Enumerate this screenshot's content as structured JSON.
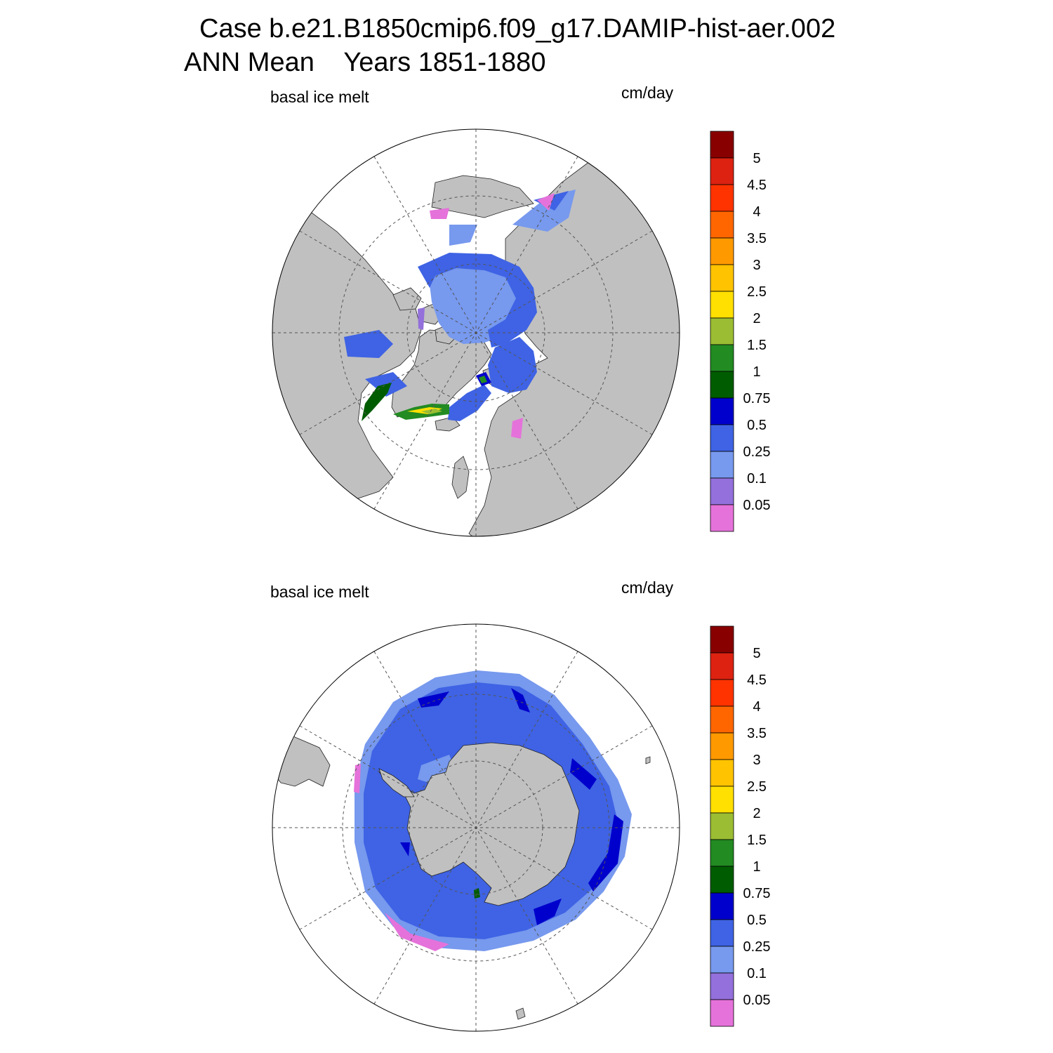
{
  "title": {
    "line1": "Case b.e21.B1850cmip6.f09_g17.DAMIP-hist-aer.002",
    "line2": "ANN Mean    Years 1851-1880"
  },
  "panels": [
    {
      "id": "north",
      "variable": "basal ice melt",
      "units": "cm/day",
      "hemisphere": "Northern"
    },
    {
      "id": "south",
      "variable": "basal ice melt",
      "units": "cm/day",
      "hemisphere": "Southern"
    }
  ],
  "colorbar": {
    "levels": [
      "0.05",
      "0.1",
      "0.25",
      "0.5",
      "0.75",
      "1",
      "1.5",
      "2",
      "2.5",
      "3",
      "3.5",
      "4",
      "4.5",
      "5"
    ],
    "colors": [
      "#e572da",
      "#9370db",
      "#7799ee",
      "#3f63e4",
      "#0000cc",
      "#005c00",
      "#228b22",
      "#9bbd33",
      "#ffe000",
      "#ffc300",
      "#ff9900",
      "#ff6600",
      "#ff3300",
      "#dd2211",
      "#880000"
    ]
  },
  "map_colors": {
    "land": "#c0c0c0",
    "ocean": "#ffffff",
    "grid": "#555555"
  }
}
